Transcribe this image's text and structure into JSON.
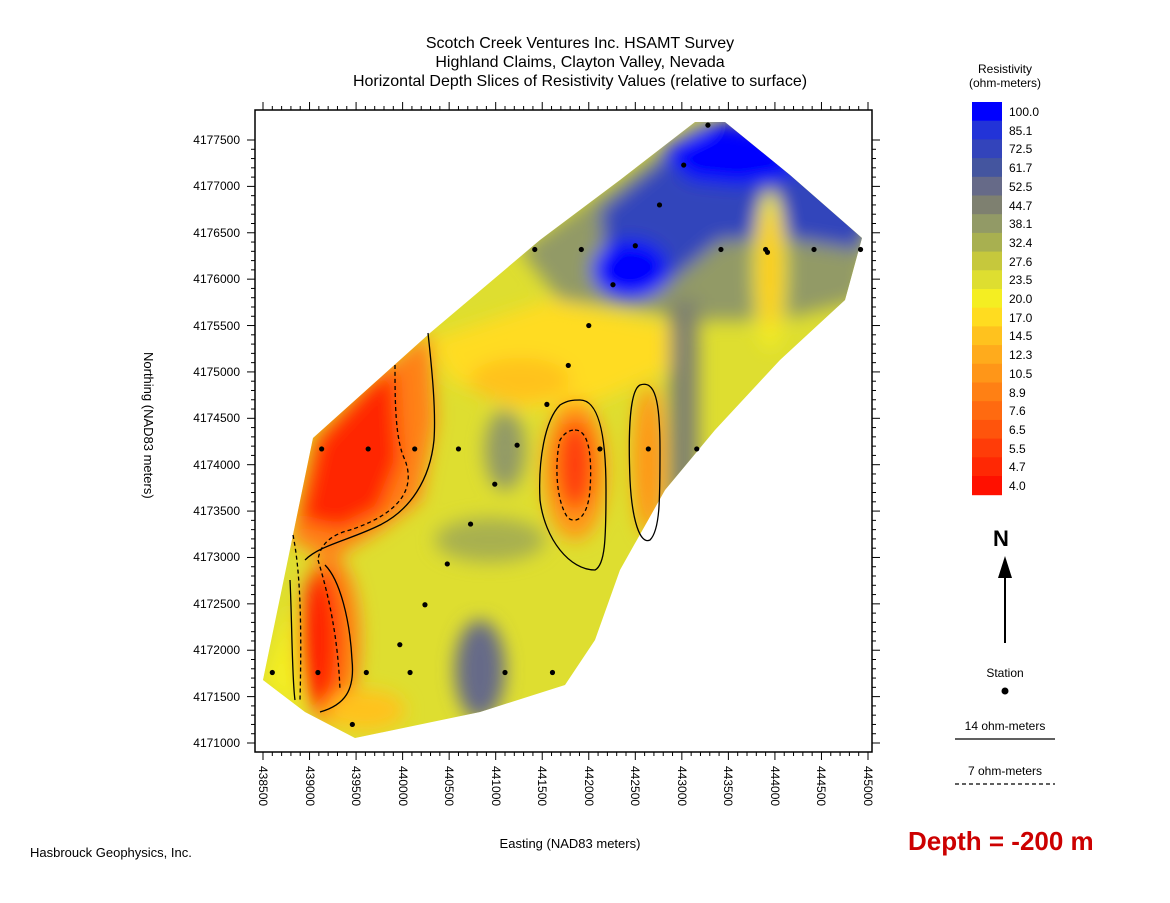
{
  "title_lines": [
    "Scotch Creek Ventures Inc. HSAMT Survey",
    "Highland Claims, Clayton Valley, Nevada",
    "Horizontal Depth Slices of Resistivity Values (relative to surface)"
  ],
  "company": "Hasbrouck Geophysics, Inc.",
  "depth_label": "Depth = -200 m",
  "axes": {
    "xlabel": "Easting (NAD83 meters)",
    "ylabel": "Northing (NAD83 meters)",
    "x_ticks": [
      "438500",
      "439000",
      "439500",
      "440000",
      "440500",
      "441000",
      "441500",
      "442000",
      "442500",
      "443000",
      "443500",
      "444000",
      "444500",
      "445000"
    ],
    "y_ticks": [
      "4171000",
      "4171500",
      "4172000",
      "4172500",
      "4173000",
      "4173500",
      "4174000",
      "4174500",
      "4175000",
      "4175500",
      "4176000",
      "4176500",
      "4177000",
      "4177500"
    ]
  },
  "legend": {
    "title_line1": "Resistivity",
    "title_line2": "(ohm-meters)",
    "values": [
      "100.0",
      "85.1",
      "72.5",
      "61.7",
      "52.5",
      "44.7",
      "38.1",
      "32.4",
      "27.6",
      "23.5",
      "20.0",
      "17.0",
      "14.5",
      "12.3",
      "10.5",
      "8.9",
      "7.6",
      "6.5",
      "5.5",
      "4.7",
      "4.0"
    ],
    "colors": [
      "#0000ff",
      "#2233d8",
      "#3344bb",
      "#44559f",
      "#666a88",
      "#7e8070",
      "#929a66",
      "#a8b050",
      "#c6c83c",
      "#dede30",
      "#f4ee22",
      "#ffdc20",
      "#ffc21e",
      "#ffab1c",
      "#ff9618",
      "#ff8014",
      "#ff6a10",
      "#ff540c",
      "#ff3c08",
      "#ff2804",
      "#ff1000"
    ]
  },
  "station_label": "Station",
  "contour_labels": [
    "14 ohm-meters",
    "7 ohm-meters"
  ],
  "north_label": "N",
  "stations": [
    [
      443280,
      4177660
    ],
    [
      443020,
      4177230
    ],
    [
      442760,
      4176800
    ],
    [
      441420,
      4176320
    ],
    [
      441920,
      4176320
    ],
    [
      442500,
      4176360
    ],
    [
      442260,
      4175940
    ],
    [
      443420,
      4176320
    ],
    [
      443900,
      4176320
    ],
    [
      443920,
      4176290
    ],
    [
      444420,
      4176320
    ],
    [
      444920,
      4176320
    ],
    [
      442000,
      4175500
    ],
    [
      441780,
      4175070
    ],
    [
      441550,
      4174650
    ],
    [
      441230,
      4174210
    ],
    [
      442120,
      4174170
    ],
    [
      442640,
      4174170
    ],
    [
      443160,
      4174170
    ],
    [
      440990,
      4173790
    ],
    [
      440730,
      4173360
    ],
    [
      440480,
      4172930
    ],
    [
      440240,
      4172490
    ],
    [
      439970,
      4172060
    ],
    [
      438600,
      4171760
    ],
    [
      439090,
      4171760
    ],
    [
      439610,
      4171760
    ],
    [
      440080,
      4171760
    ],
    [
      440600,
      4174170
    ],
    [
      440130,
      4174170
    ],
    [
      439630,
      4174170
    ],
    [
      439130,
      4174170
    ],
    [
      441100,
      4171760
    ],
    [
      441610,
      4171760
    ],
    [
      439460,
      4171200
    ]
  ]
}
